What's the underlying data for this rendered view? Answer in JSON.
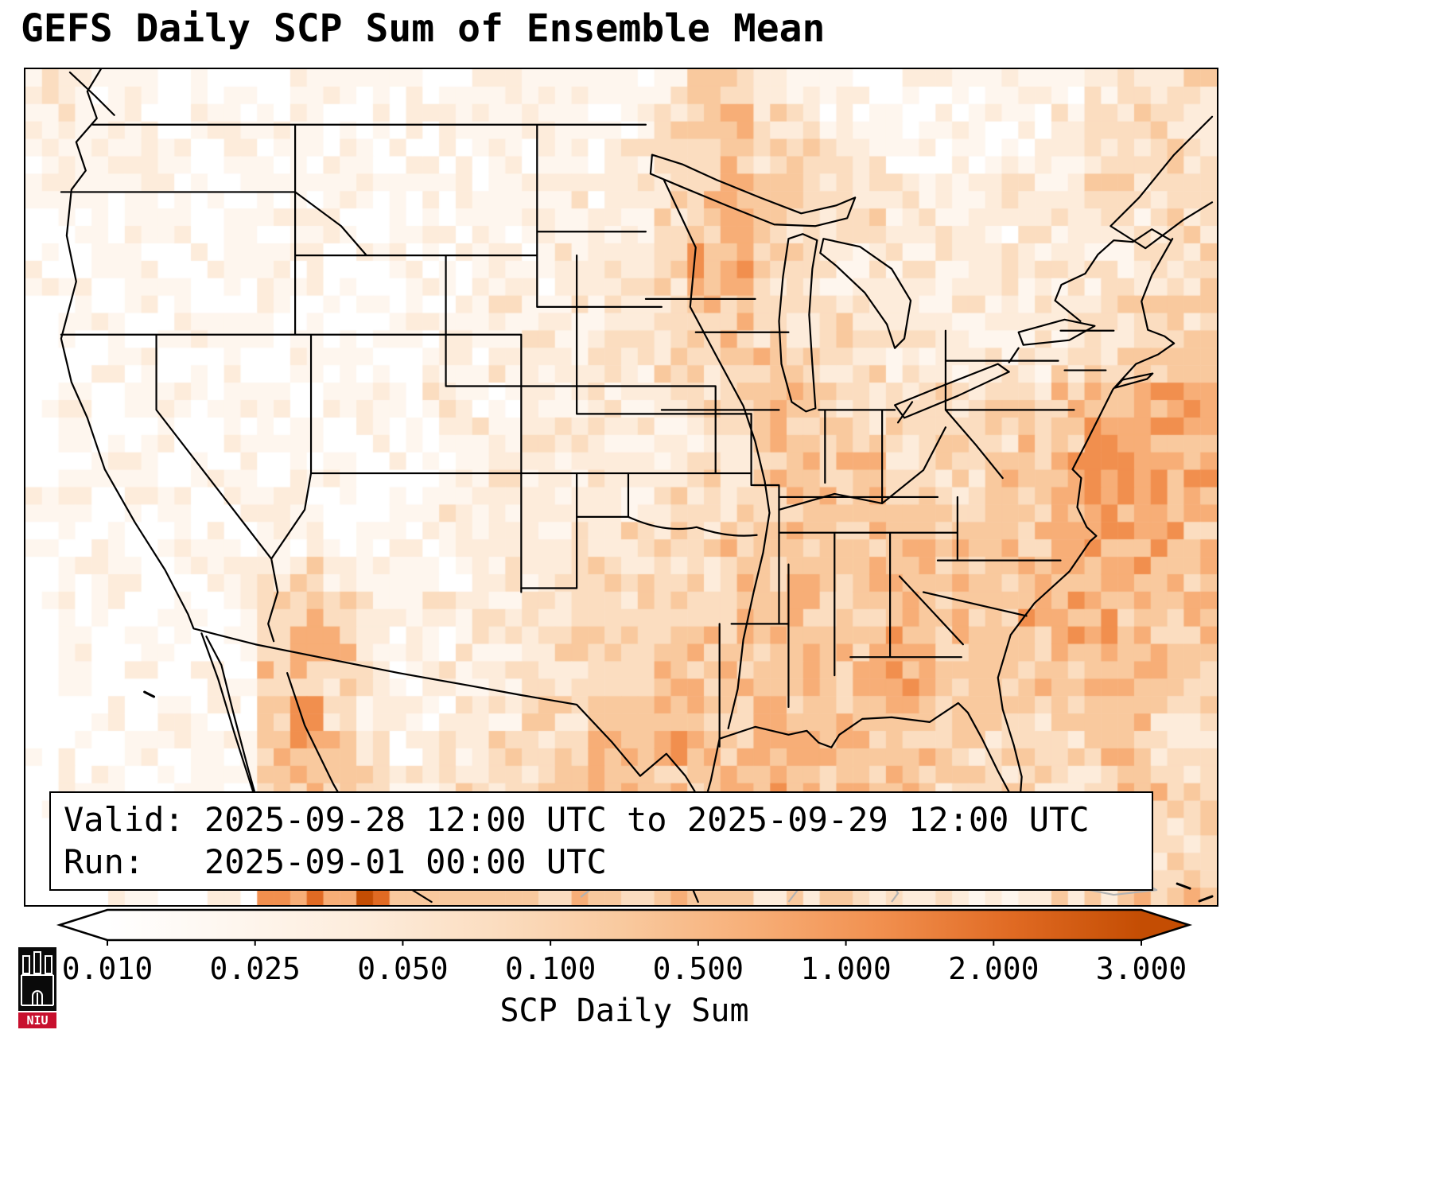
{
  "title": "GEFS Daily SCP Sum of Ensemble Mean",
  "info_box": {
    "valid_line": "Valid: 2025-09-28 12:00 UTC to 2025-09-29 12:00 UTC",
    "run_line": "Run:   2025-09-01 00:00 UTC"
  },
  "colorbar": {
    "label": "SCP Daily Sum",
    "ticks": [
      "0.010",
      "0.025",
      "0.050",
      "0.100",
      "0.500",
      "1.000",
      "2.000",
      "3.000"
    ],
    "extend_under_color": "#ffffff",
    "extend_over_color": "#c44d03"
  },
  "logo": {
    "text": "NIU",
    "shield_color": "#0a0a0a",
    "band_color": "#c8102e"
  },
  "chart_data": {
    "type": "heatmap",
    "title": "GEFS Daily SCP Sum of Ensemble Mean",
    "variable": "SCP Daily Sum",
    "legend_position": "bottom",
    "scale_values": [
      0.01,
      0.025,
      0.05,
      0.1,
      0.5,
      1.0,
      2.0,
      3.0
    ],
    "scp_bins": [
      "<0.01",
      "0.01-0.025",
      "0.025-0.05",
      "0.05-0.1",
      "0.1-0.5",
      "0.5-1",
      "1-2",
      "2-3",
      ">3"
    ],
    "colors": [
      "#ffffff",
      "#fef6ee",
      "#fdecdb",
      "#fbddc0",
      "#f9c99e",
      "#f7ae77",
      "#f18f4e",
      "#e06a23",
      "#c44d03"
    ],
    "grid_encoding": "each row string = 36 columns west-to-east; 24 rows north-to-south; digit = index into scp_bins/colors",
    "grid": [
      "211101101111111111123321111111112333",
      "121101111011111111134432111111123332",
      "112110111111111111234433321111122333",
      "111211011111111121234543322112223323",
      "011110111101111112234543332211222233",
      "101101111011111122235543222222222233",
      "110110011111112122234433222222222333",
      "011011101101111222333432322222223333",
      "001101101110112222233343332222233444",
      "010110110111211222223344333333344455",
      "011010111011121222222344433333445555",
      "011101101101112222223344443334455555",
      "110110111101212222233334444334455555",
      "101011011011122222333444444444455554",
      "011101123211112223333444444444555544",
      "011010134321222223333444444444555444",
      "010110134421122233344444445444455444",
      "010101144321222333444444455444445443",
      "001011145321122334444454445443344433",
      "010111145421223334454455544433334433",
      "011011144432233344444554444333333443",
      "001101155432333344445444433332233333",
      "010111145543334444444443333222223333",
      "001101156674444443344433333322233444"
    ]
  }
}
